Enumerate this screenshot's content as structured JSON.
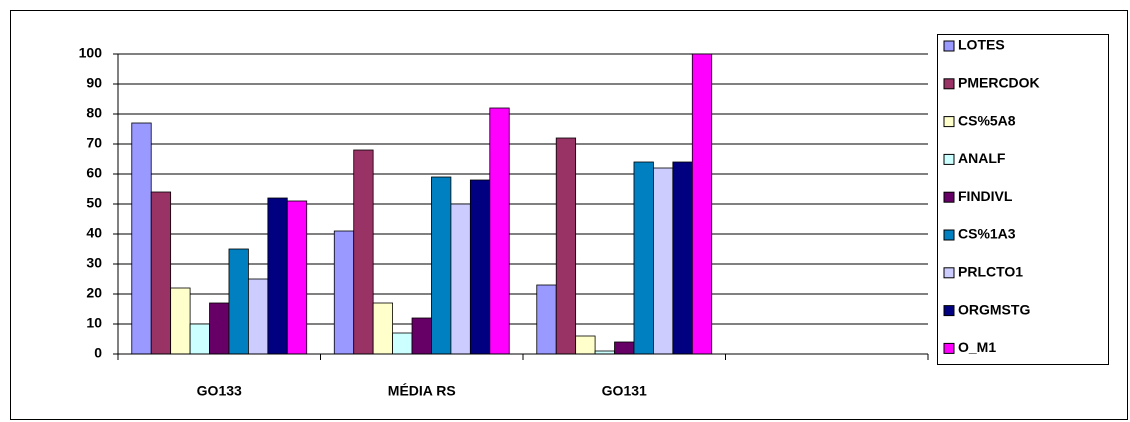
{
  "chart_data": {
    "type": "bar",
    "categories": [
      "GO133",
      "MÉDIA RS",
      "GO131",
      null
    ],
    "series": [
      {
        "name": "LOTES",
        "color": "#9999ff",
        "values": [
          77,
          41,
          23,
          null
        ]
      },
      {
        "name": "PMERCDOK",
        "color": "#993366",
        "values": [
          54,
          68,
          72,
          null
        ]
      },
      {
        "name": "CS%5A8",
        "color": "#ffffcc",
        "values": [
          22,
          17,
          6,
          null
        ]
      },
      {
        "name": "ANALF",
        "color": "#ccffff",
        "values": [
          10,
          7,
          1,
          null
        ]
      },
      {
        "name": "FINDIVL",
        "color": "#660066",
        "values": [
          17,
          12,
          4,
          null
        ]
      },
      {
        "name": "CS%1A3",
        "color": "#0080c0",
        "values": [
          35,
          59,
          64,
          null
        ]
      },
      {
        "name": "PRLCTO1",
        "color": "#ccccff",
        "values": [
          25,
          50,
          62,
          null
        ]
      },
      {
        "name": "ORGMSTG",
        "color": "#000080",
        "values": [
          52,
          58,
          64,
          null
        ]
      },
      {
        "name": "O_M1",
        "color": "#ff00ff",
        "values": [
          51,
          82,
          100,
          null
        ]
      }
    ],
    "ylim": [
      0,
      100
    ],
    "yticks": [
      0,
      10,
      20,
      30,
      40,
      50,
      60,
      70,
      80,
      90,
      100
    ],
    "grid": true,
    "legend": "right"
  }
}
